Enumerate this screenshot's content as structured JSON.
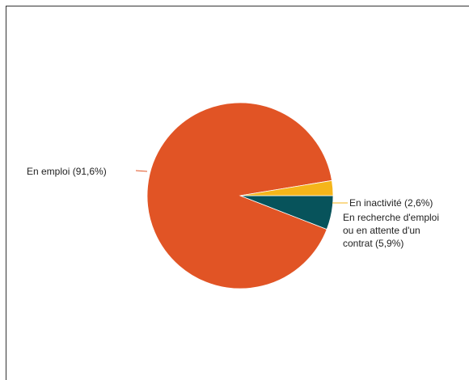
{
  "chart_data": {
    "type": "pie",
    "title": "",
    "slices": [
      {
        "label_lines": [
          "En emploi (91,6%)"
        ],
        "value": 91.6,
        "color": "#e15425",
        "label_side": "left"
      },
      {
        "label_lines": [
          "En recherche d'emploi",
          "ou en attente d'un",
          "contrat (5,9%)"
        ],
        "value": 5.9,
        "color": "#07535b",
        "label_side": "right"
      },
      {
        "label_lines": [
          "En inactivité (2,6%)"
        ],
        "value": 2.6,
        "color": "#f5b51a",
        "label_side": "right"
      }
    ],
    "start": "3 o'clock, clockwise",
    "legend": "none"
  }
}
